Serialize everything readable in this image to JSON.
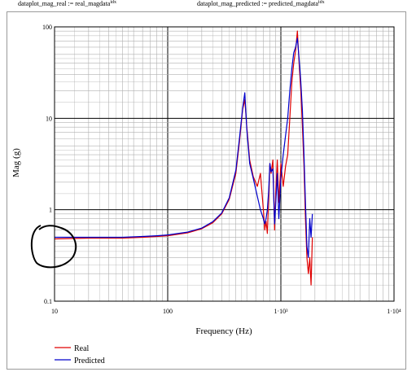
{
  "header": {
    "def1": {
      "lhs": "dataplot_mag_real := real_magdata",
      "sup": "idx"
    },
    "def2": {
      "lhs": "dataplot_mag_predicted := predicted_magdata",
      "sup": "idx"
    }
  },
  "colors": {
    "real": "#e00000",
    "predicted": "#0000cc",
    "grid_major": "#000000",
    "grid_minor": "#b0b0b0",
    "annotation": "#000000"
  },
  "annotation": {
    "shape": "hand-drawn-circle"
  },
  "chart_data": {
    "type": "line",
    "title": "",
    "xlabel": "Frequency (Hz)",
    "ylabel": "Mag (g)",
    "xscale": "log",
    "yscale": "log",
    "xlim": [
      10,
      10000
    ],
    "ylim": [
      0.1,
      100
    ],
    "grid": true,
    "legend_position": "bottom-left",
    "x_tick_labels": [
      "10",
      "100",
      "1·10³",
      "1·10⁴"
    ],
    "y_tick_labels": [
      "0.1",
      "1",
      "10",
      "100"
    ],
    "series": [
      {
        "name": "Real",
        "color": "#e00000",
        "x": [
          10,
          20,
          40,
          60,
          80,
          100,
          150,
          200,
          250,
          300,
          350,
          400,
          430,
          460,
          480,
          500,
          530,
          570,
          620,
          660,
          700,
          720,
          740,
          760,
          780,
          800,
          820,
          850,
          880,
          900,
          930,
          960,
          1000,
          1050,
          1100,
          1150,
          1200,
          1250,
          1300,
          1350,
          1400,
          1450,
          1500,
          1550,
          1600,
          1650,
          1700,
          1750,
          1800,
          1850,
          1900
        ],
        "y": [
          0.48,
          0.49,
          0.49,
          0.5,
          0.51,
          0.52,
          0.56,
          0.62,
          0.72,
          0.9,
          1.3,
          2.5,
          5.5,
          12.5,
          16,
          8,
          3.5,
          2.3,
          1.8,
          2.5,
          1.0,
          0.6,
          0.75,
          0.55,
          1.3,
          3.2,
          2.5,
          3.5,
          0.6,
          1.5,
          3.5,
          1.2,
          3.2,
          1.8,
          3.0,
          4.0,
          10,
          25,
          40,
          55,
          90,
          40,
          20,
          8,
          3,
          0.8,
          0.3,
          0.2,
          0.3,
          0.15,
          0.5
        ]
      },
      {
        "name": "Predicted",
        "color": "#0000cc",
        "x": [
          10,
          20,
          40,
          60,
          80,
          100,
          150,
          200,
          250,
          300,
          350,
          400,
          430,
          460,
          480,
          500,
          530,
          570,
          620,
          660,
          700,
          720,
          740,
          760,
          780,
          800,
          820,
          850,
          880,
          900,
          930,
          960,
          1000,
          1050,
          1100,
          1150,
          1200,
          1250,
          1300,
          1350,
          1400,
          1450,
          1500,
          1550,
          1600,
          1650,
          1700,
          1750,
          1800,
          1850,
          1900
        ],
        "y": [
          0.5,
          0.5,
          0.5,
          0.51,
          0.52,
          0.53,
          0.57,
          0.63,
          0.74,
          0.92,
          1.35,
          2.7,
          6,
          13,
          19,
          7.5,
          3.2,
          2.2,
          1.4,
          1.0,
          0.8,
          0.7,
          0.8,
          1.0,
          1.6,
          3.2,
          2.6,
          2.8,
          0.7,
          1.1,
          2.5,
          0.8,
          2.2,
          4.0,
          6.5,
          10,
          20,
          35,
          52,
          60,
          75,
          45,
          25,
          12,
          4,
          1.2,
          0.4,
          0.3,
          0.8,
          0.5,
          0.9
        ]
      }
    ]
  }
}
